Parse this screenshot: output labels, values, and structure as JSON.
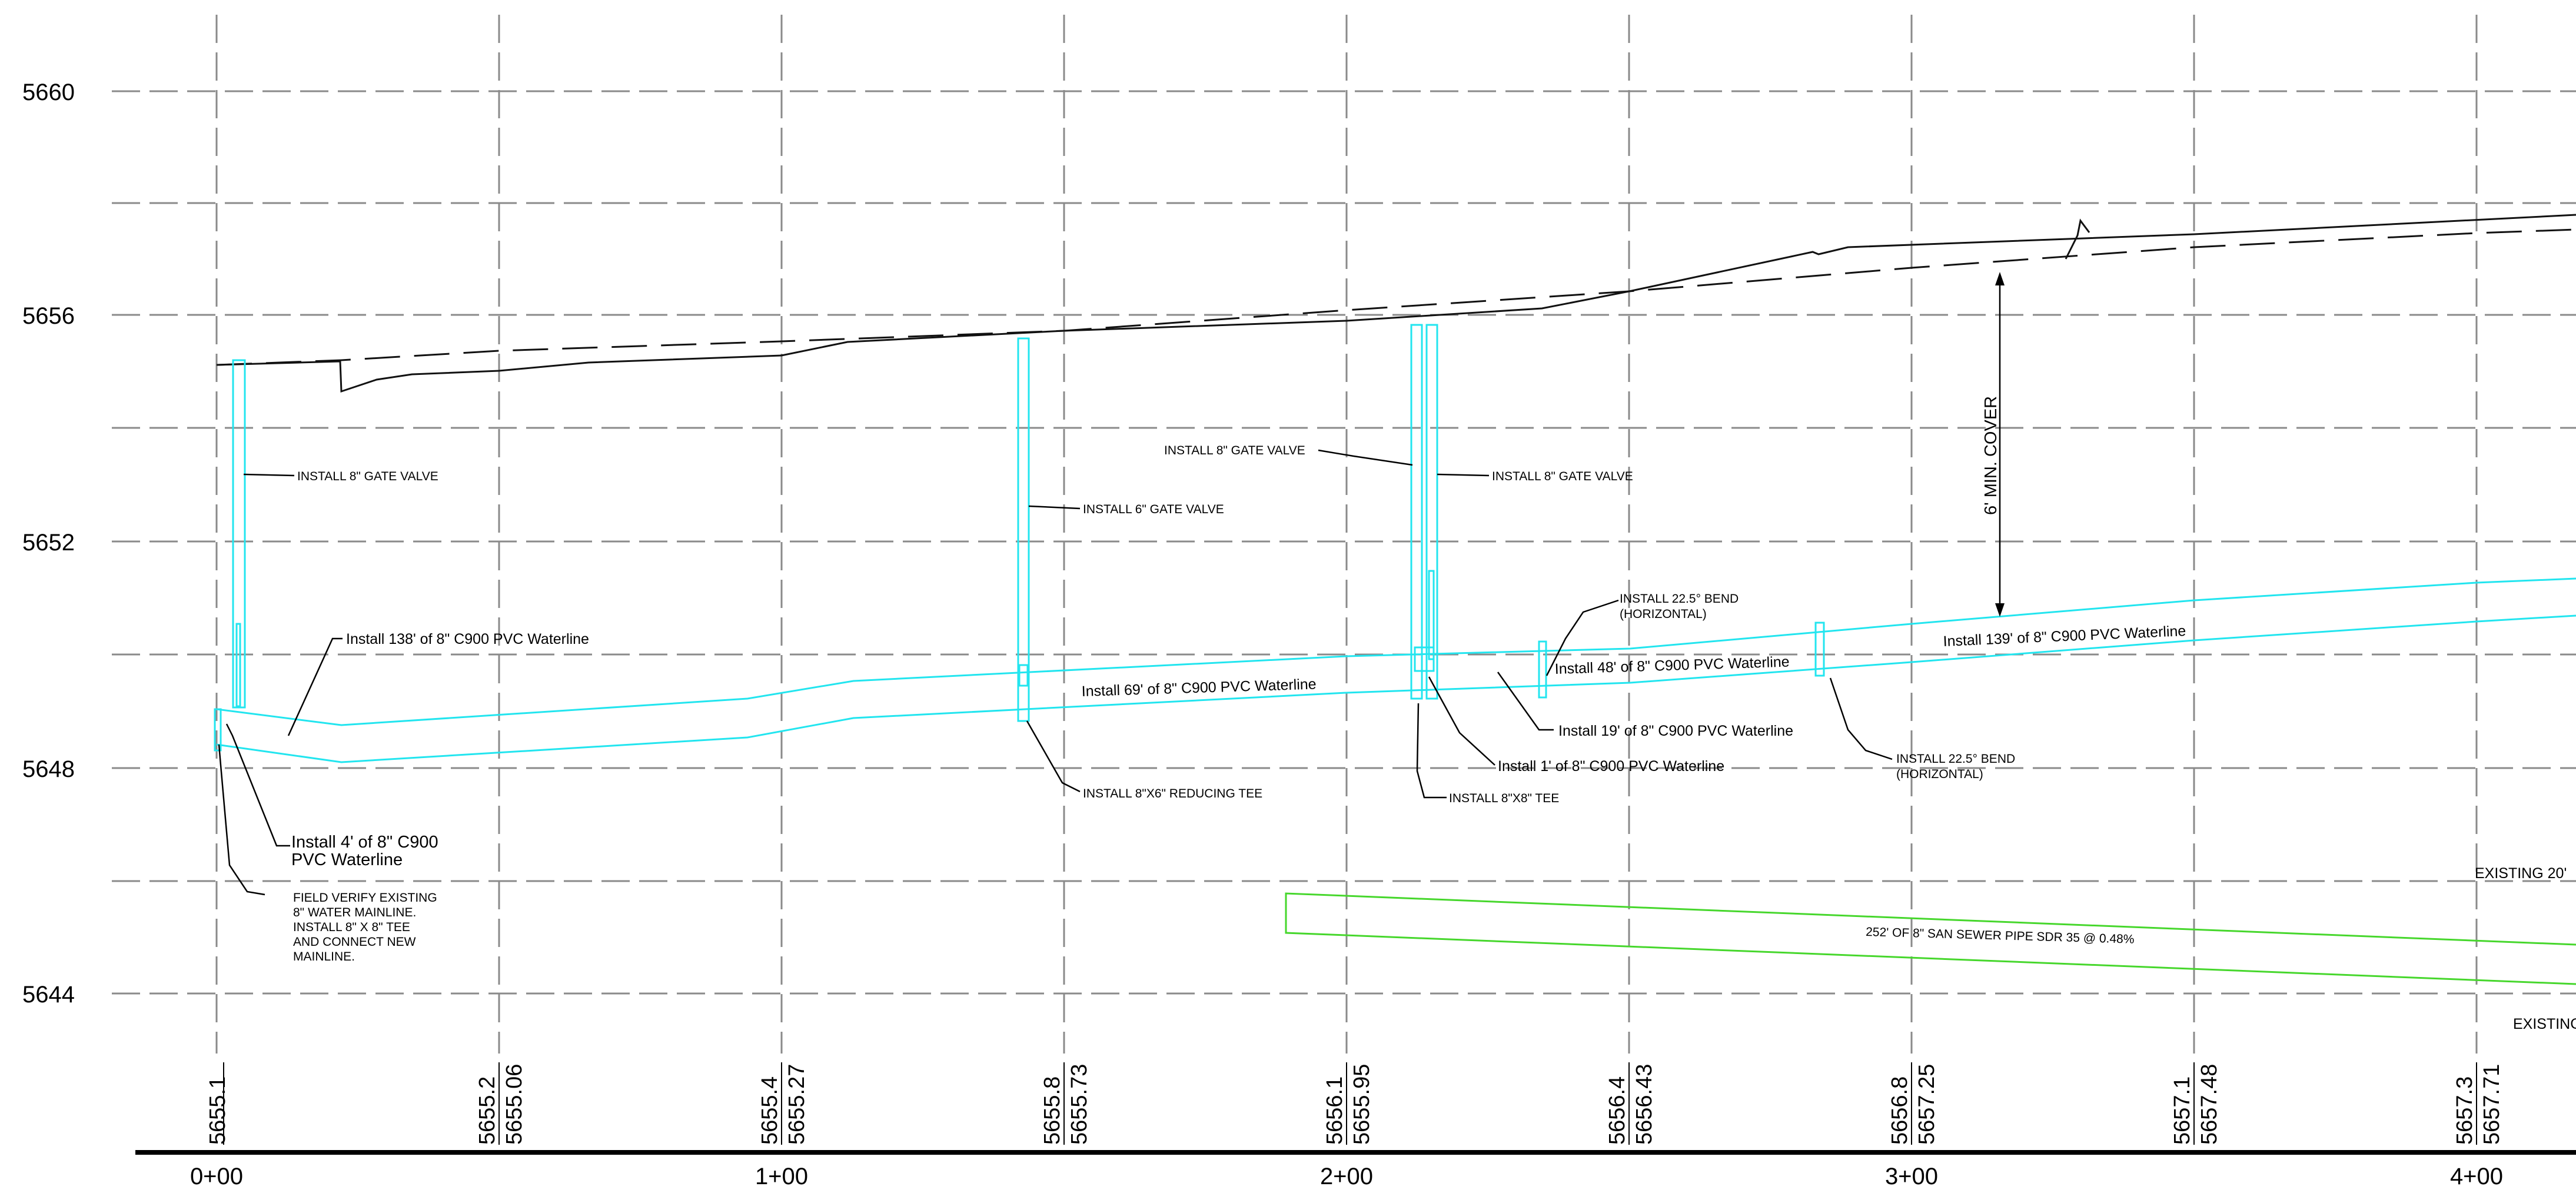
{
  "elevation_axis": [
    "5660",
    "5656",
    "5652",
    "5648",
    "5644"
  ],
  "stations": [
    "0+00",
    "1+00",
    "2+00",
    "3+00",
    "4+00"
  ],
  "elevations": [
    {
      "left": "5655.1",
      "right": ""
    },
    {
      "left": "5655.2",
      "right": "5655.06"
    },
    {
      "left": "5655.4",
      "right": "5655.27"
    },
    {
      "left": "5655.8",
      "right": "5655.73"
    },
    {
      "left": "5656.1",
      "right": "5655.95"
    },
    {
      "left": "5656.4",
      "right": "5656.43"
    },
    {
      "left": "5656.8",
      "right": "5657.25"
    },
    {
      "left": "5657.1",
      "right": "5657.48"
    },
    {
      "left": "5657.3",
      "right": "5657.71"
    }
  ],
  "annotations": {
    "gate_valve_1": "INSTALL 8\" GATE VALVE",
    "gate_valve_6": "INSTALL 6\" GATE VALVE",
    "gate_valve_left": "INSTALL 8\" GATE VALVE",
    "gate_valve_right": "INSTALL 8\" GATE VALVE",
    "min_cover": "6' MIN. COVER",
    "bend1_l1": "INSTALL 22.5° BEND",
    "bend1_l2": "(HORIZONTAL)",
    "bend2_l1": "INSTALL 22.5° BEND",
    "bend2_l2": "(HORIZONTAL)",
    "wl138": "Install 138' of 8\" C900 PVC Waterline",
    "wl69": "Install 69' of 8\" C900 PVC Waterline",
    "wl48": "Install 48' of 8\" C900 PVC Waterline",
    "wl139": "Install 139' of 8\" C900 PVC Waterline",
    "wl19": "Install 19' of 8\" C900 PVC Waterline",
    "wl1": "Install 1' of 8\" C900 PVC Waterline",
    "wl4_l1": "Install 4' of 8\" C900",
    "wl4_l2": "PVC Waterline",
    "reducing_tee": "INSTALL 8\"X6\" REDUCING TEE",
    "tee_8x8": "INSTALL 8\"X8\" TEE",
    "field_l1": "FIELD VERIFY EXISTING",
    "field_l2": "8\" WATER MAINLINE.",
    "field_l3": "INSTALL 8\" X 8\" TEE",
    "field_l4": "AND CONNECT NEW",
    "field_l5": "MAINLINE.",
    "sewer": "252' OF 8\" SAN SEWER PIPE SDR 35 @ 0.48%",
    "existing_20": "EXISTING 20'",
    "existing_cut": "EXISTINC"
  },
  "colors": {
    "waterline": "#22e5ef",
    "sewer": "#46d72c",
    "ground": "#111111",
    "grid": "#8a8a8a"
  }
}
